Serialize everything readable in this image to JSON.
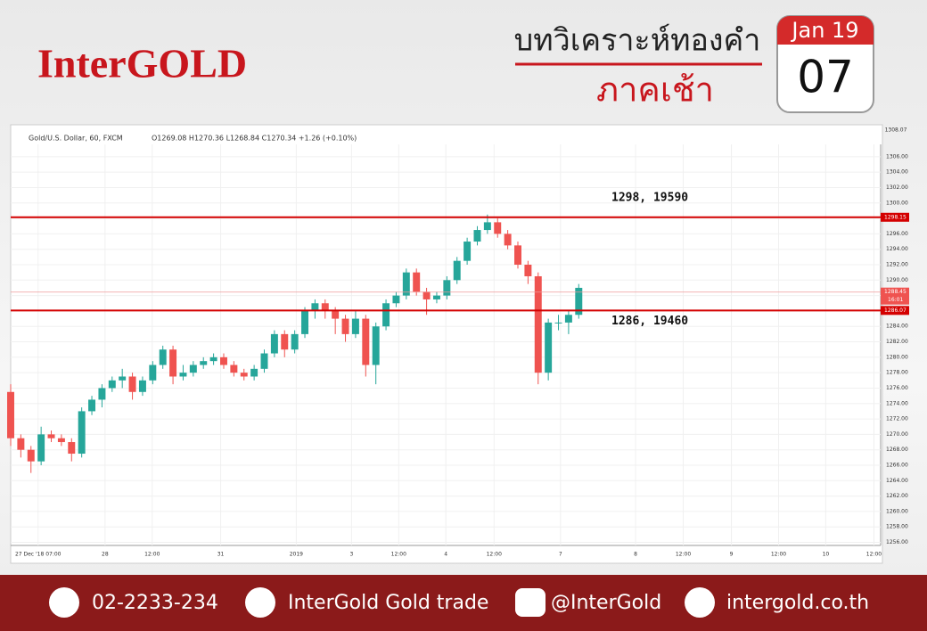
{
  "header": {
    "logo": "InterGOLD",
    "title": "บทวิเคราะห์ทองคำ",
    "subtitle": "ภาคเช้า",
    "calendar_month": "Jan 19",
    "calendar_day": "07"
  },
  "chart_data": {
    "type": "candlestick",
    "symbol": "Gold/U.S. Dollar, 60, FXCM",
    "ohlc_readout": "O1269.08 H1270.36 L1268.84 C1270.34 +1.26 (+0.10%)",
    "top_price": "1308.07",
    "up_color": "#26a69a",
    "down_color": "#ef5350",
    "x": [
      0,
      2,
      4,
      6,
      8,
      10,
      12,
      14,
      16,
      18,
      20,
      22,
      24,
      26,
      28,
      30,
      32,
      34,
      36,
      38,
      40,
      42,
      44,
      46,
      48,
      50,
      52,
      54,
      56,
      58,
      60,
      62,
      64,
      66,
      68,
      70,
      72,
      74,
      76,
      78,
      80,
      82,
      84,
      86,
      88,
      90,
      92,
      94,
      96,
      98,
      100,
      102,
      104,
      106,
      108,
      110,
      112
    ],
    "open": [
      1275.5,
      1269.5,
      1268,
      1266.5,
      1270,
      1269.5,
      1269,
      1267.5,
      1273,
      1274.5,
      1276,
      1277,
      1277.5,
      1275.5,
      1277,
      1279,
      1281,
      1277.5,
      1278,
      1279,
      1279.5,
      1280,
      1279,
      1278,
      1277.5,
      1278.5,
      1280.5,
      1283,
      1281,
      1283,
      1286,
      1287,
      1286,
      1285,
      1283,
      1285,
      1279,
      1284,
      1287,
      1288,
      1291,
      1288.5,
      1287.5,
      1288,
      1290,
      1292.5,
      1295,
      1296.5,
      1297.5,
      1296,
      1294.5,
      1292,
      1290.5,
      1278,
      1284.5,
      1284.5,
      1285.5
    ],
    "high": [
      1276.5,
      1270,
      1268.5,
      1271,
      1270.5,
      1270,
      1269.5,
      1273.5,
      1275,
      1276.5,
      1277.5,
      1278.5,
      1278,
      1277.5,
      1279.5,
      1281.5,
      1281.5,
      1279,
      1279.5,
      1280,
      1280.5,
      1280.5,
      1279.5,
      1278.5,
      1279,
      1281,
      1283.5,
      1283.5,
      1283.5,
      1286.5,
      1287.5,
      1287.5,
      1286.5,
      1285.5,
      1286,
      1285.5,
      1284.5,
      1287.5,
      1288.5,
      1291.5,
      1291.5,
      1289,
      1288.5,
      1290.5,
      1293,
      1295.5,
      1297,
      1298.5,
      1298,
      1296.5,
      1295,
      1292.5,
      1291,
      1285,
      1285.5,
      1286,
      1289.5
    ],
    "low": [
      1268.5,
      1267,
      1265,
      1266,
      1269,
      1268.5,
      1266.5,
      1267,
      1272.5,
      1273.5,
      1275.5,
      1276,
      1274.5,
      1275,
      1276.5,
      1278.5,
      1276.5,
      1277,
      1277.5,
      1278.5,
      1279,
      1278.5,
      1277.5,
      1277,
      1277,
      1278,
      1280,
      1280,
      1280.5,
      1282.5,
      1285,
      1285,
      1283,
      1282,
      1282.5,
      1277.5,
      1276.5,
      1283.5,
      1286.5,
      1287.5,
      1288,
      1285.5,
      1287,
      1287.5,
      1289.5,
      1292,
      1294.5,
      1296,
      1295.5,
      1294,
      1291.5,
      1289.5,
      1276.5,
      1277,
      1283.5,
      1283,
      1285
    ],
    "close": [
      1269.5,
      1268,
      1266.5,
      1270,
      1269.5,
      1269,
      1267.5,
      1273,
      1274.5,
      1276,
      1277,
      1277.5,
      1275.5,
      1277,
      1279,
      1281,
      1277.5,
      1278,
      1279,
      1279.5,
      1280,
      1279,
      1278,
      1277.5,
      1278.5,
      1280.5,
      1283,
      1281,
      1283,
      1286,
      1287,
      1286,
      1285,
      1283,
      1285,
      1279,
      1284,
      1287,
      1288,
      1291,
      1288.5,
      1287.5,
      1288,
      1290,
      1292.5,
      1295,
      1296.5,
      1297.5,
      1296,
      1294.5,
      1292,
      1290.5,
      1278,
      1284.5,
      1284.5,
      1285.5,
      1289
    ],
    "xlim": [
      0,
      171
    ],
    "xticks": [
      {
        "value": 5.4,
        "label": "27 Dec '18  07:00"
      },
      {
        "value": 18.6,
        "label": "28"
      },
      {
        "value": 27.9,
        "label": "12:00"
      },
      {
        "value": 41.4,
        "label": "31"
      },
      {
        "value": 56.3,
        "label": "2019"
      },
      {
        "value": 67.2,
        "label": "3"
      },
      {
        "value": 76.5,
        "label": "12:00"
      },
      {
        "value": 85.8,
        "label": "4"
      },
      {
        "value": 95.3,
        "label": "12:00"
      },
      {
        "value": 108.4,
        "label": "7"
      },
      {
        "value": 123.2,
        "label": "8"
      },
      {
        "value": 132.6,
        "label": "12:00"
      },
      {
        "value": 142.1,
        "label": "9"
      },
      {
        "value": 151.4,
        "label": "12:00"
      },
      {
        "value": 160.7,
        "label": "10"
      },
      {
        "value": 170.2,
        "label": "12:00"
      }
    ],
    "ylim": [
      1255.6,
      1307.6
    ],
    "yticks": [
      {
        "value": 1256,
        "label": "1256.00"
      },
      {
        "value": 1258,
        "label": "1258.00"
      },
      {
        "value": 1260,
        "label": "1260.00"
      },
      {
        "value": 1262,
        "label": "1262.00"
      },
      {
        "value": 1264,
        "label": "1264.00"
      },
      {
        "value": 1266,
        "label": "1266.00"
      },
      {
        "value": 1268,
        "label": "1268.00"
      },
      {
        "value": 1270,
        "label": "1270.00"
      },
      {
        "value": 1272,
        "label": "1272.00"
      },
      {
        "value": 1274,
        "label": "1274.00"
      },
      {
        "value": 1276,
        "label": "1276.00"
      },
      {
        "value": 1278,
        "label": "1278.00"
      },
      {
        "value": 1280,
        "label": "1280.00"
      },
      {
        "value": 1282,
        "label": "1282.00"
      },
      {
        "value": 1284,
        "label": "1284.00"
      },
      {
        "value": 1286,
        "label": "1286.00"
      },
      {
        "value": 1288,
        "label": "1288.00"
      },
      {
        "value": 1290,
        "label": "1290.00"
      },
      {
        "value": 1292,
        "label": "1292.00"
      },
      {
        "value": 1294,
        "label": "1294.00"
      },
      {
        "value": 1296,
        "label": "1296.00"
      },
      {
        "value": 1298,
        "label": "1298.00"
      },
      {
        "value": 1300,
        "label": "1300.00"
      },
      {
        "value": 1302,
        "label": "1302.00"
      },
      {
        "value": 1304,
        "label": "1304.00"
      },
      {
        "value": 1306,
        "label": "1306.00"
      }
    ],
    "grid": true,
    "hlines": [
      {
        "value": 1298.15,
        "annotation": "1298, 19590",
        "color": "#d40000"
      },
      {
        "value": 1286.07,
        "annotation": "1286, 19460",
        "color": "#d40000"
      }
    ],
    "last_price": 1288.45,
    "countdown": "16:01"
  },
  "footer": {
    "phone": "02-2233-234",
    "facebook": "InterGold Gold trade",
    "line": "@InterGold",
    "website": "intergold.co.th"
  }
}
